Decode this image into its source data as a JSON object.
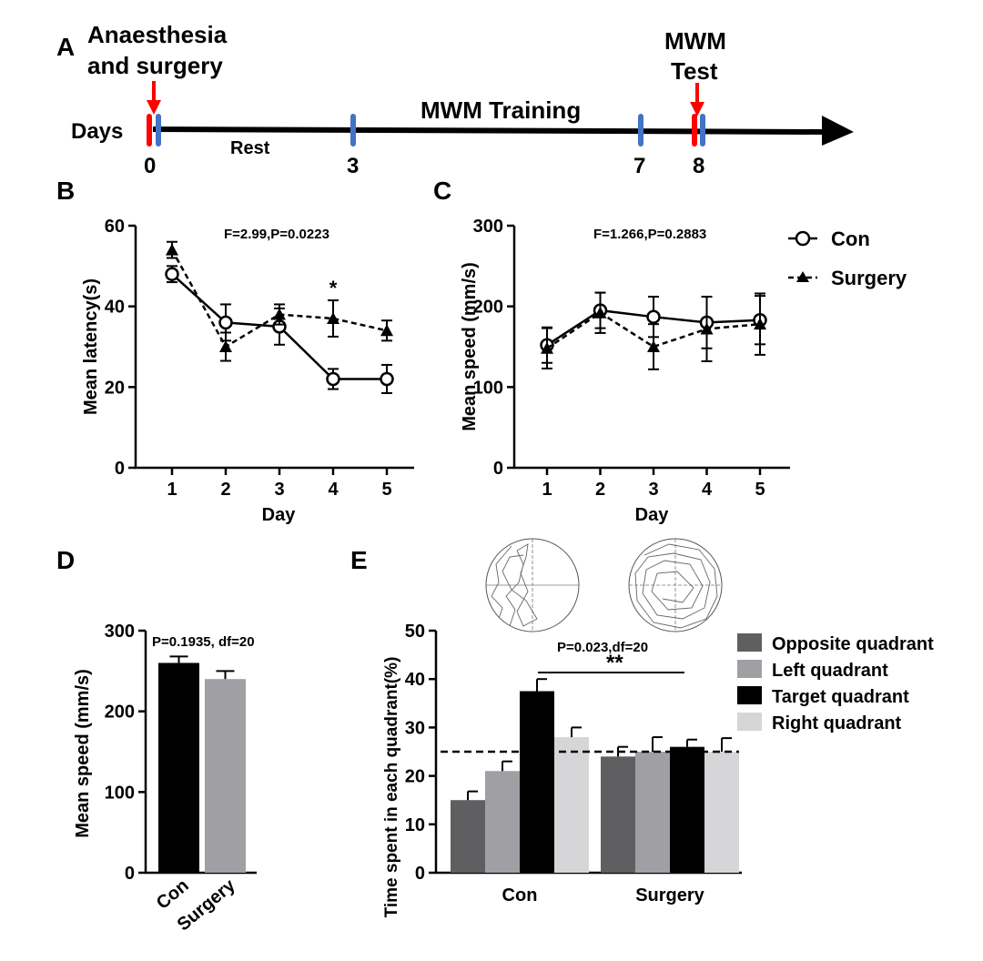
{
  "panel_labels": {
    "a": "A",
    "b": "B",
    "c": "C",
    "d": "D",
    "e": "E"
  },
  "timeline": {
    "days_label": "Days",
    "event1_line1": "Anaesthesia",
    "event1_line2": "and surgery",
    "event2_line1": "MWM",
    "event2_line2": "Test",
    "rest_label": "Rest",
    "training_label": "MWM Training",
    "day_ticks": [
      {
        "day": 0,
        "label": "0"
      },
      {
        "day": 3,
        "label": "3"
      },
      {
        "day": 7,
        "label": "7"
      },
      {
        "day": 8,
        "label": "8"
      }
    ]
  },
  "legend_bc": {
    "con": "Con",
    "surgery": "Surgery"
  },
  "legend_e": [
    "Opposite quadrant",
    "Left quadrant",
    "Target quadrant",
    "Right quadrant"
  ],
  "colors": {
    "opposite": "#5f5f61",
    "left": "#a0a0a4",
    "target": "#000000",
    "right": "#d6d6d8",
    "con_bar": "#000000",
    "surgery_bar": "#a0a0a4",
    "event_arrow": "#ff0000",
    "day_marker": "#4472c4"
  },
  "chart_data": [
    {
      "panel": "B",
      "type": "line",
      "annotation": "F=2.99,P=0.0223",
      "xlabel": "Day",
      "ylabel": "Mean latency(s)",
      "x": [
        1,
        2,
        3,
        4,
        5
      ],
      "xticks": [
        "1",
        "2",
        "3",
        "4",
        "5"
      ],
      "ylim": [
        0,
        60
      ],
      "yticks": [
        "0",
        "20",
        "40",
        "60"
      ],
      "series": [
        {
          "name": "Con",
          "values": [
            48,
            36,
            35,
            22,
            22
          ],
          "errors": [
            2,
            4.5,
            4.5,
            2.5,
            3.5
          ]
        },
        {
          "name": "Surgery",
          "values": [
            54,
            30,
            38,
            37,
            34
          ],
          "errors": [
            2,
            3.5,
            2.5,
            4.5,
            2.5
          ]
        }
      ],
      "significance": [
        {
          "x": 4,
          "label": "*"
        }
      ]
    },
    {
      "panel": "C",
      "type": "line",
      "annotation": "F=1.266,P=0.2883",
      "xlabel": "Day",
      "ylabel": "Mean speed (mm/s)",
      "x": [
        1,
        2,
        3,
        4,
        5
      ],
      "xticks": [
        "1",
        "2",
        "3",
        "4",
        "5"
      ],
      "ylim": [
        0,
        300
      ],
      "yticks": [
        "0",
        "100",
        "200",
        "300"
      ],
      "series": [
        {
          "name": "Con",
          "values": [
            152,
            195,
            187,
            180,
            183
          ],
          "errors": [
            22,
            22,
            25,
            32,
            30
          ]
        },
        {
          "name": "Surgery",
          "values": [
            148,
            192,
            150,
            172,
            178
          ],
          "errors": [
            25,
            25,
            28,
            40,
            38
          ]
        }
      ]
    },
    {
      "panel": "D",
      "type": "bar",
      "annotation": "P=0.1935, df=20",
      "ylabel": "Mean speed (mm/s)",
      "categories": [
        "Con",
        "Surgery"
      ],
      "values": [
        260,
        240
      ],
      "errors": [
        8,
        10
      ],
      "ylim": [
        0,
        300
      ],
      "yticks": [
        "0",
        "100",
        "200",
        "300"
      ]
    },
    {
      "panel": "E",
      "type": "bar",
      "annotation": "P=0.023,df=20",
      "significance": "**",
      "ylabel": "Time spent in each quadrant(%)",
      "categories": [
        "Con",
        "Surgery"
      ],
      "series": [
        {
          "name": "Opposite quadrant",
          "values": [
            15,
            24
          ],
          "errors": [
            1.8,
            2
          ]
        },
        {
          "name": "Left quadrant",
          "values": [
            21,
            25
          ],
          "errors": [
            2,
            3
          ]
        },
        {
          "name": "Target quadrant",
          "values": [
            37.5,
            26
          ],
          "errors": [
            2.5,
            1.5
          ]
        },
        {
          "name": "Right quadrant",
          "values": [
            28,
            25
          ],
          "errors": [
            2,
            2.8
          ]
        }
      ],
      "reference_line": 25,
      "ylim": [
        0,
        50
      ],
      "yticks": [
        "0",
        "10",
        "20",
        "30",
        "40",
        "50"
      ]
    }
  ]
}
